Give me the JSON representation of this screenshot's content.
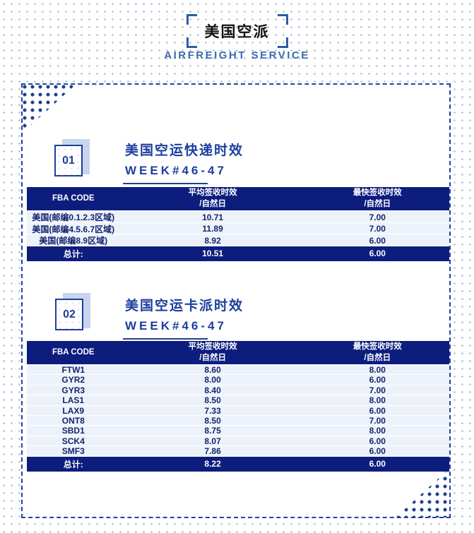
{
  "page": {
    "title": "美国空派",
    "subtitle": "AIRFREIGHT SERVICE"
  },
  "colors": {
    "table_header_navy": "#0d1d7e",
    "accent_navy": "#1e3f94",
    "title_blue": "#1c3f9e",
    "subtitle_blue": "#3a68ae",
    "row_bg_light_blue": "#edf2fa",
    "badge_shadow_blue": "#c7d6ee",
    "bracket_blue": "#2e5ca6",
    "background_dot_blue": "#b0c2de"
  },
  "sections": [
    {
      "number": "01",
      "title": "美国空运快递时效",
      "week": "WEEK#46-47",
      "table": {
        "headers": {
          "col1": "FBA CODE",
          "col2_line1": "平均签收时效",
          "col2_line2": "/自然日",
          "col3_line1": "最快签收时效",
          "col3_line2": "/自然日"
        },
        "rows": [
          [
            "美国(邮编0.1.2.3区域)",
            "10.71",
            "7.00"
          ],
          [
            "美国(邮编4.5.6.7区域)",
            "11.89",
            "7.00"
          ],
          [
            "美国(邮编8.9区域)",
            "8.92",
            "6.00"
          ]
        ],
        "total": {
          "label": "总计:",
          "avg": "10.51",
          "fastest": "6.00"
        }
      }
    },
    {
      "number": "02",
      "title": "美国空运卡派时效",
      "week": "WEEK#46-47",
      "table": {
        "headers": {
          "col1": "FBA CODE",
          "col2_line1": "平均签收时效",
          "col2_line2": "/自然日",
          "col3_line1": "最快签收时效",
          "col3_line2": "/自然日"
        },
        "rows": [
          [
            "FTW1",
            "8.60",
            "8.00"
          ],
          [
            "GYR2",
            "8.00",
            "6.00"
          ],
          [
            "GYR3",
            "8.40",
            "7.00"
          ],
          [
            "LAS1",
            "8.50",
            "8.00"
          ],
          [
            "LAX9",
            "7.33",
            "6.00"
          ],
          [
            "ONT8",
            "8.50",
            "7.00"
          ],
          [
            "SBD1",
            "8.75",
            "8.00"
          ],
          [
            "SCK4",
            "8.07",
            "6.00"
          ],
          [
            "SMF3",
            "7.86",
            "6.00"
          ]
        ],
        "total": {
          "label": "总计:",
          "avg": "8.22",
          "fastest": "6.00"
        }
      }
    }
  ]
}
